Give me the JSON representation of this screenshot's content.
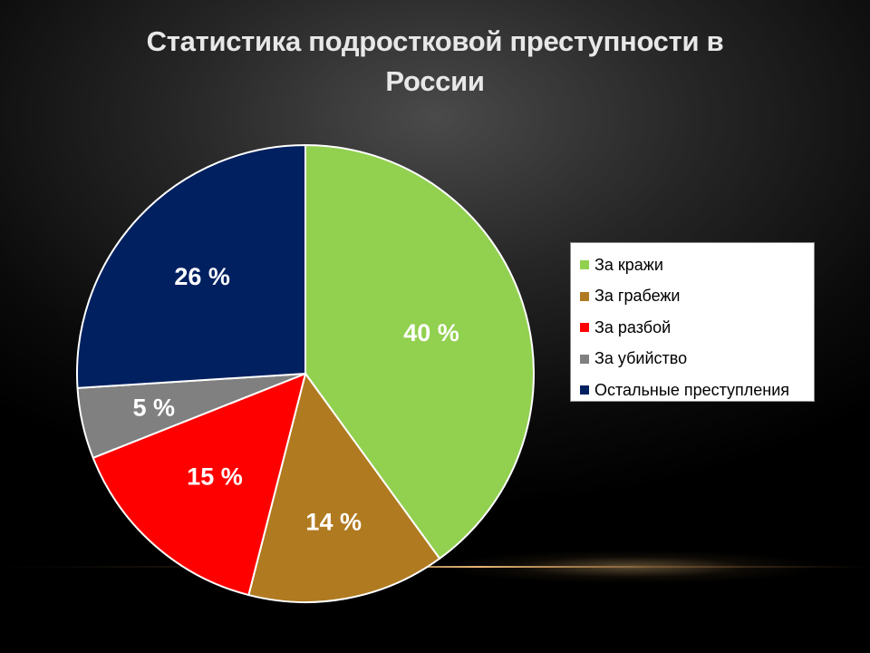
{
  "slide": {
    "title": "Статистика подростковой преступности в России"
  },
  "chart_data": {
    "type": "pie",
    "title": "Статистика подростковой преступности в России",
    "slices": [
      {
        "name": "За кражи",
        "value": 40,
        "label": "40 %",
        "color": "#92D050"
      },
      {
        "name": "За грабежи",
        "value": 14,
        "label": "14 %",
        "color": "#B07A20"
      },
      {
        "name": "За разбой",
        "value": 15,
        "label": "15 %",
        "color": "#FF0000"
      },
      {
        "name": "За убийство",
        "value": 5,
        "label": "5 %",
        "color": "#808080"
      },
      {
        "name": "Остальные преступления",
        "value": 26,
        "label": "26 %",
        "color": "#002060"
      }
    ],
    "legend_position": "right"
  }
}
